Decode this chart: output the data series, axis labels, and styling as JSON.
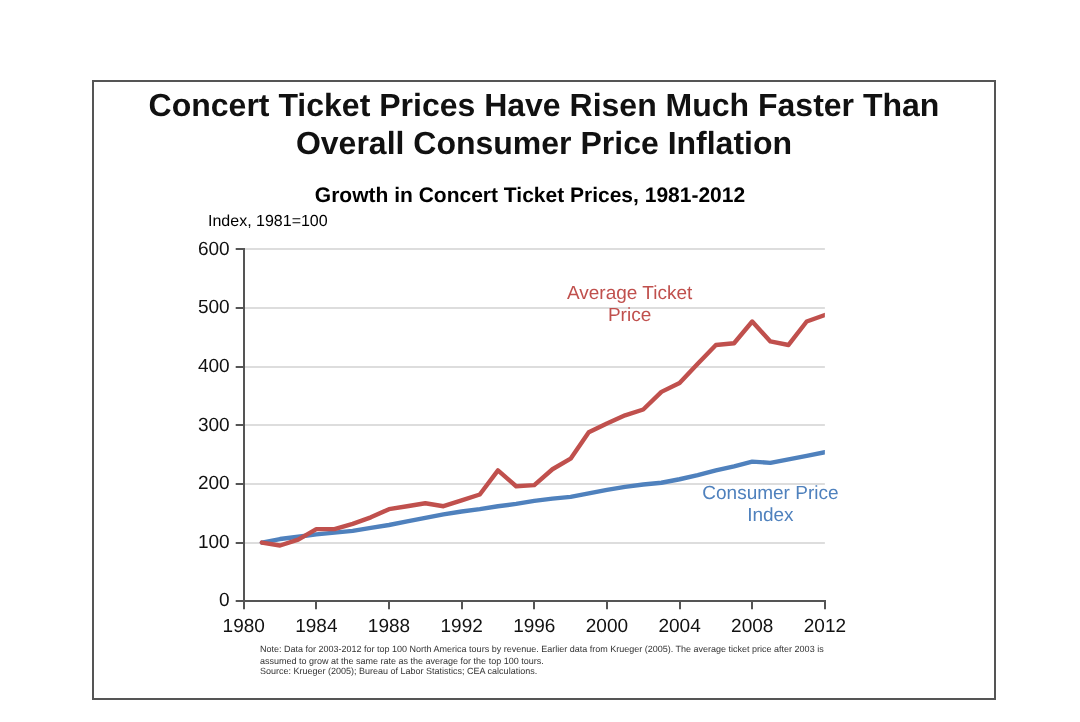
{
  "chart_data": {
    "type": "line",
    "title": "Concert Ticket Prices Have Risen Much Faster Than Overall Consumer Price Inflation",
    "subtitle": "Growth in Concert Ticket Prices, 1981-2012",
    "ylabel": "Index, 1981=100",
    "x": [
      1981,
      1982,
      1983,
      1984,
      1985,
      1986,
      1987,
      1988,
      1989,
      1990,
      1991,
      1992,
      1993,
      1994,
      1995,
      1996,
      1997,
      1998,
      1999,
      2000,
      2001,
      2002,
      2003,
      2004,
      2005,
      2006,
      2007,
      2008,
      2009,
      2010,
      2011,
      2012
    ],
    "series": [
      {
        "name": "Average Ticket Price",
        "color": "#c0504d",
        "values": [
          100,
          95,
          105,
          123,
          123,
          132,
          143,
          157,
          162,
          167,
          162,
          172,
          182,
          223,
          196,
          198,
          225,
          243,
          288,
          303,
          317,
          327,
          357,
          372,
          405,
          437,
          440,
          477,
          443,
          437,
          477,
          488
        ]
      },
      {
        "name": "Consumer Price Index",
        "color": "#4f81bd",
        "values": [
          100,
          106,
          110,
          114,
          117,
          120,
          125,
          130,
          136,
          142,
          148,
          153,
          157,
          162,
          166,
          171,
          175,
          178,
          184,
          190,
          195,
          199,
          202,
          208,
          215,
          223,
          230,
          238,
          236,
          242,
          248,
          254
        ]
      }
    ],
    "xlim": [
      1980,
      2012
    ],
    "xticks": [
      1980,
      1984,
      1988,
      1992,
      1996,
      2000,
      2004,
      2008,
      2012
    ],
    "ylim": [
      0,
      600
    ],
    "yticks": [
      0,
      100,
      200,
      300,
      400,
      500,
      600
    ],
    "grid": "y",
    "legend": false,
    "marker": "none",
    "line_style": "solid",
    "annotations": [
      "Note: Data for 2003-2012 for top 100 North America tours by revenue. Earlier data from Krueger (2005). The average ticket price after 2003 is assumed to grow at the same rate as the average for the top 100 tours.",
      "Source: Krueger (2005); Bureau of Labor Statistics; CEA calculations."
    ]
  }
}
